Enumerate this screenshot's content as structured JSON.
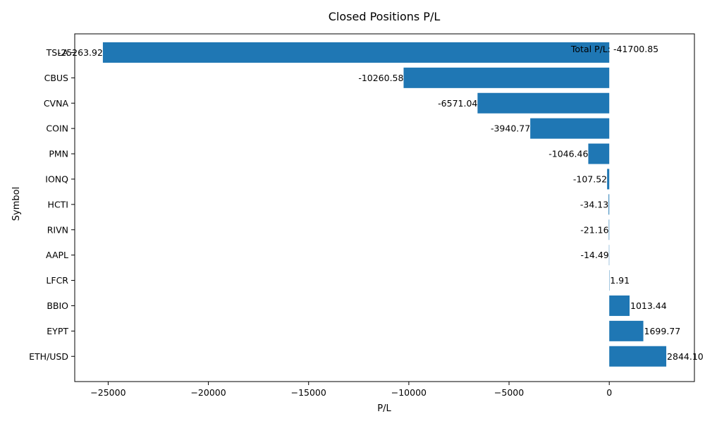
{
  "chart_data": {
    "type": "bar",
    "orientation": "horizontal",
    "title": "Closed Positions P/L",
    "xlabel": "P/L",
    "ylabel": "Symbol",
    "categories": [
      "TSLA",
      "CBUS",
      "CVNA",
      "COIN",
      "PMN",
      "IONQ",
      "HCTI",
      "RIVN",
      "AAPL",
      "LFCR",
      "BBIO",
      "EYPT",
      "ETH/USD"
    ],
    "values": [
      -25263.92,
      -10260.58,
      -6571.04,
      -3940.77,
      -1046.46,
      -107.52,
      -34.13,
      -21.16,
      -14.49,
      1.91,
      1013.44,
      1699.77,
      2844.1
    ],
    "value_labels": [
      "-25263.92",
      "-10260.58",
      "-6571.04",
      "-3940.77",
      "-1046.46",
      "-107.52",
      "-34.13",
      "-21.16",
      "-14.49",
      "1.91",
      "1013.44",
      "1699.77",
      "2844.10"
    ],
    "xlim": [
      -26668,
      4249
    ],
    "xticks": [
      -25000,
      -20000,
      -15000,
      -10000,
      -5000,
      0
    ],
    "xtick_labels": [
      "−25000",
      "−20000",
      "−15000",
      "−10000",
      "−5000",
      "0"
    ],
    "bar_color": "#1f77b4",
    "grid": false,
    "legend": "none",
    "annotation": "Total P/L: -41700.85"
  }
}
